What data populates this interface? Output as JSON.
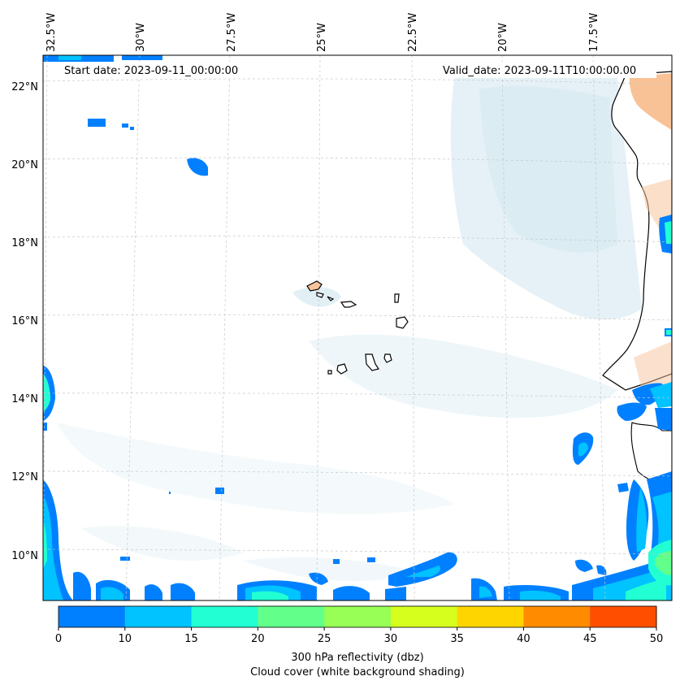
{
  "map": {
    "start_date": "Start date: 2023-09-11_00:00:00",
    "valid_date": "Valid_date: 2023-09-11T10:00:00.00",
    "lon_labels": [
      "32.5°W",
      "30°W",
      "27.5°W",
      "25°W",
      "22.5°W",
      "20°W",
      "17.5°W"
    ],
    "lat_labels": [
      "22°N",
      "20°N",
      "18°N",
      "16°N",
      "14°N",
      "12°N",
      "10°N"
    ]
  },
  "colorbar": {
    "ticks": [
      "0",
      "10",
      "15",
      "20",
      "25",
      "30",
      "35",
      "40",
      "45",
      "50"
    ],
    "colors": [
      "#0080ff",
      "#00c3ff",
      "#22ffd2",
      "#62ff8a",
      "#97ff55",
      "#d6ff1d",
      "#ffd500",
      "#ff8c00",
      "#ff4e00"
    ],
    "label_line1": "300 hPa reflectivity (dbz)",
    "label_line2": "Cloud cover (white background shading)"
  }
}
